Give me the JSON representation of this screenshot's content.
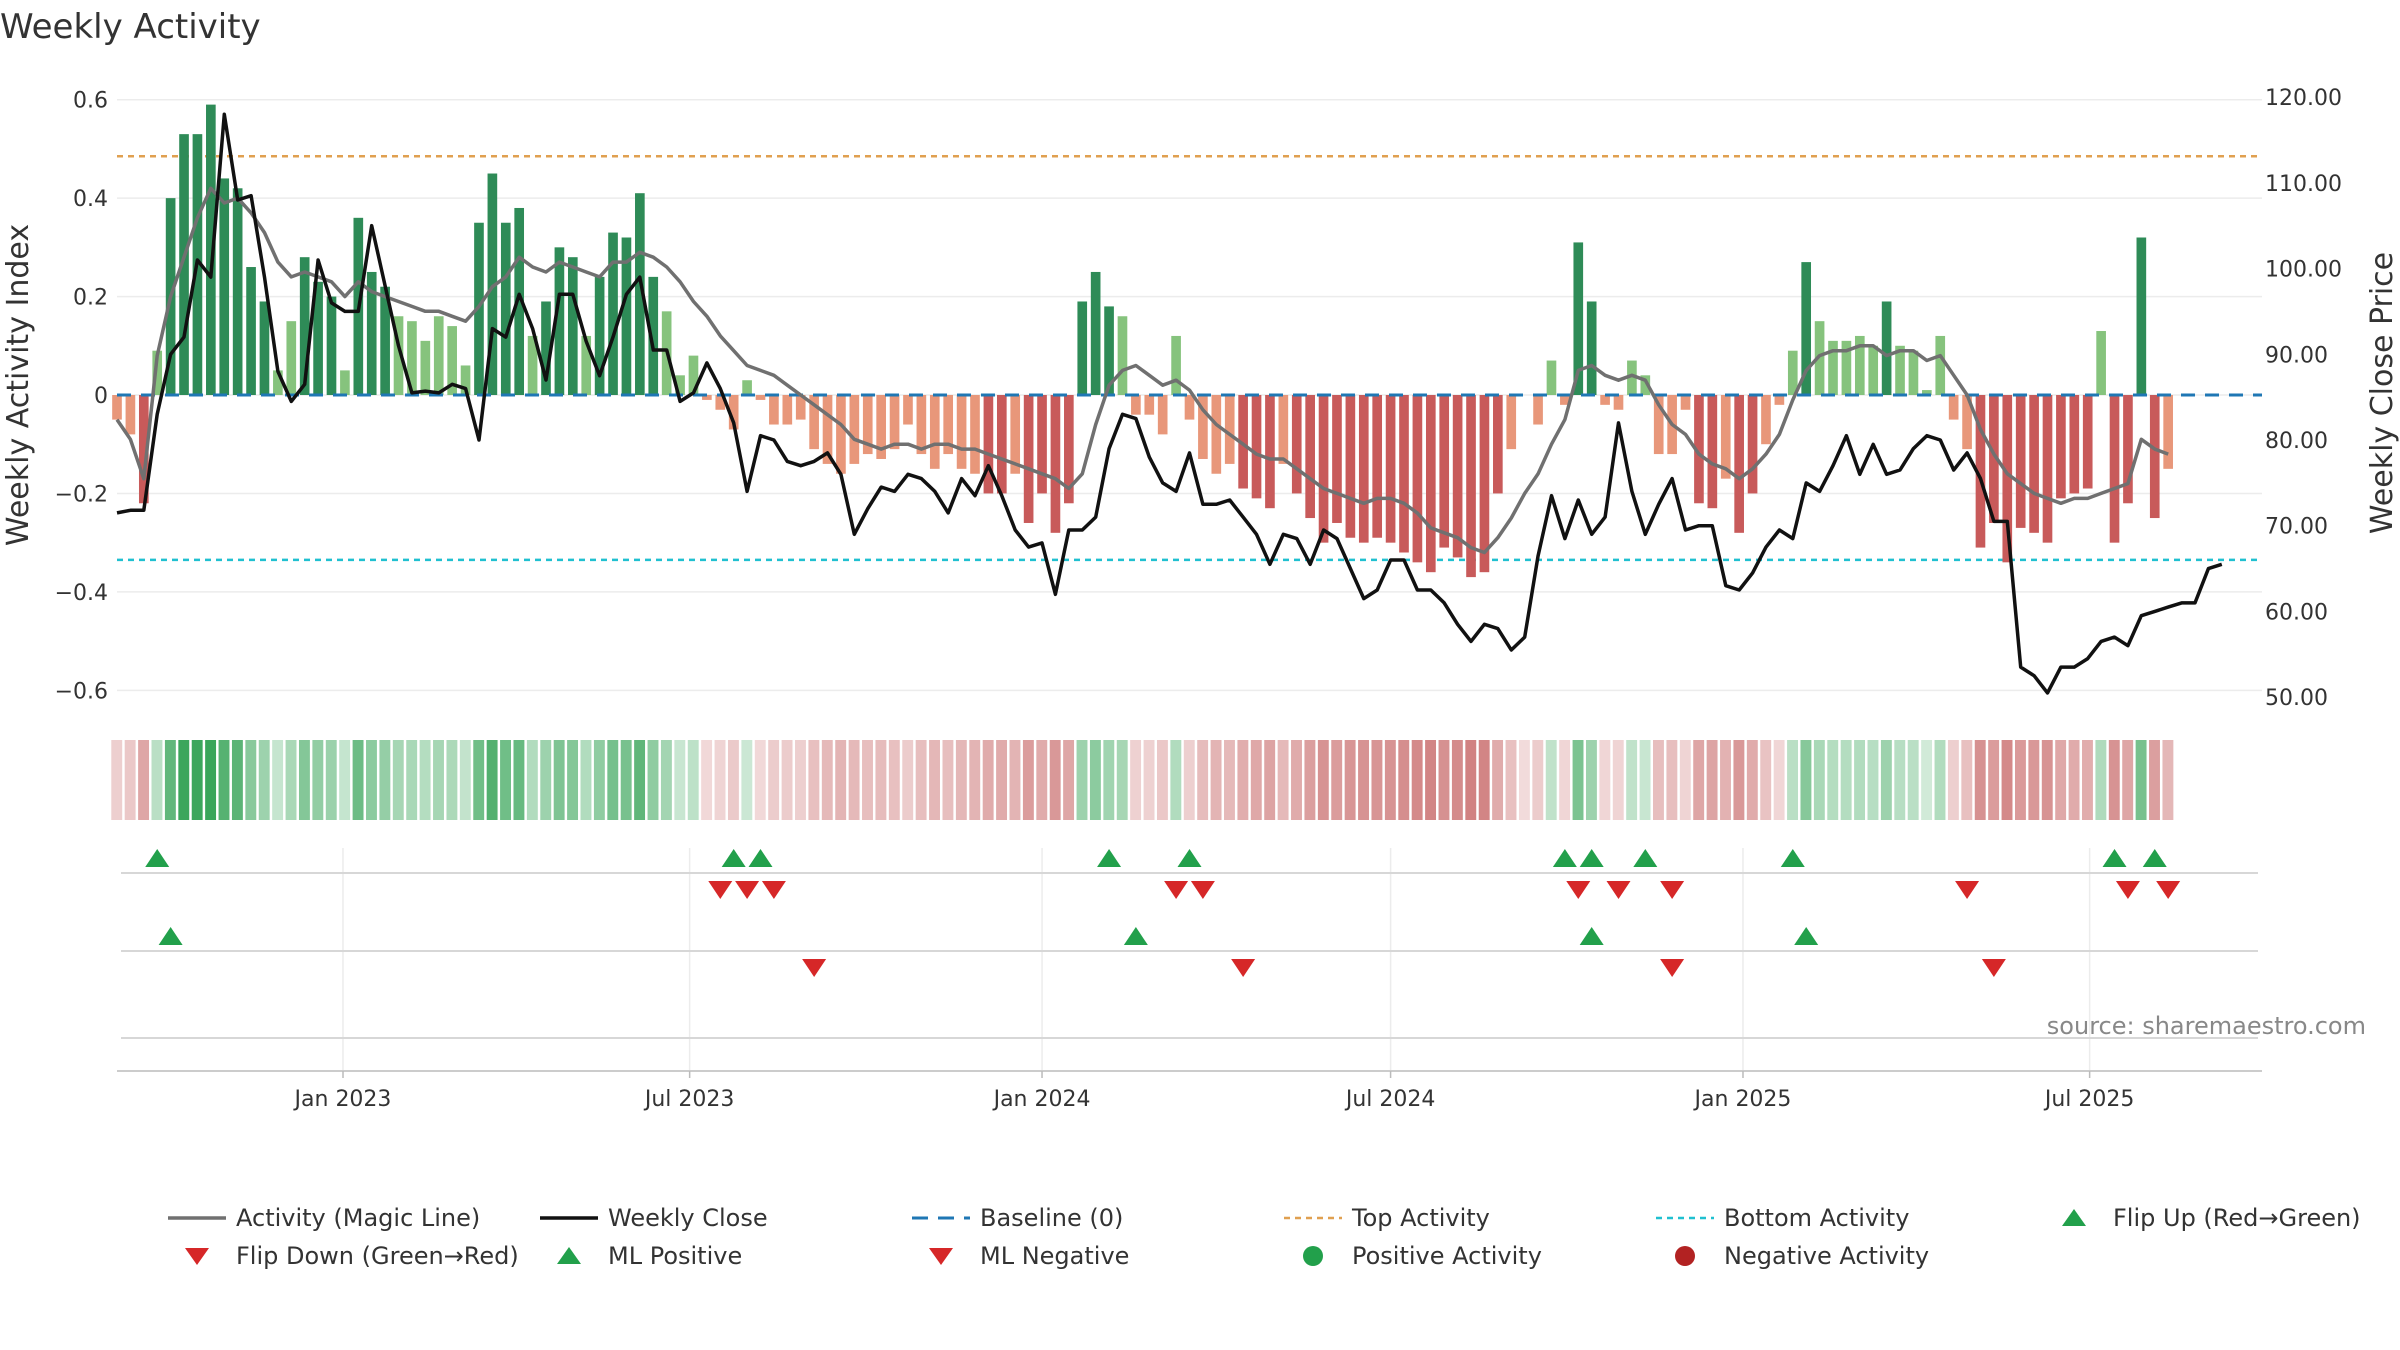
{
  "chart_data": {
    "type": "bar",
    "title": "Weekly Activity",
    "ylabel": "Weekly Activity Index",
    "y2label": "Weekly Close Price",
    "ylim": [
      -0.64,
      0.64
    ],
    "y2lim": [
      48.5,
      122
    ],
    "yticks": [
      -0.6,
      -0.4,
      -0.2,
      0,
      0.2,
      0.4,
      0.6
    ],
    "ytick_labels": [
      "−0.6",
      "−0.4",
      "−0.2",
      "0",
      "0.2",
      "0.4",
      "0.6"
    ],
    "y2ticks": [
      50,
      60,
      70,
      80,
      90,
      100,
      110,
      120
    ],
    "y2tick_labels": [
      "50.00",
      "60.00",
      "70.00",
      "80.00",
      "90.00",
      "100.00",
      "110.00",
      "120.00"
    ],
    "xlim": [
      "2022-09-05",
      "2025-09-29"
    ],
    "xticks": [
      "2023-01-01",
      "2023-07-01",
      "2024-01-01",
      "2024-07-01",
      "2025-01-01",
      "2025-07-01"
    ],
    "xtick_labels": [
      "Jan 2023",
      "Jul 2023",
      "Jan 2024",
      "Jul 2024",
      "Jan 2025",
      "Jul 2025"
    ],
    "start_date": "2022-09-05",
    "week_step_days": 7,
    "top_activity": 0.485,
    "bottom_activity": -0.335,
    "baseline": 0,
    "activity": [
      -0.05,
      -0.08,
      -0.22,
      0.09,
      0.4,
      0.53,
      0.53,
      0.59,
      0.44,
      0.42,
      0.26,
      0.19,
      0.05,
      0.15,
      0.28,
      0.23,
      0.2,
      0.05,
      0.36,
      0.25,
      0.22,
      0.16,
      0.15,
      0.11,
      0.16,
      0.14,
      0.06,
      0.35,
      0.45,
      0.35,
      0.38,
      0.12,
      0.19,
      0.3,
      0.28,
      0.12,
      0.24,
      0.33,
      0.32,
      0.41,
      0.24,
      0.17,
      0.04,
      0.08,
      -0.01,
      -0.03,
      -0.07,
      0.03,
      -0.01,
      -0.06,
      -0.06,
      -0.05,
      -0.11,
      -0.14,
      -0.16,
      -0.14,
      -0.12,
      -0.13,
      -0.11,
      -0.06,
      -0.12,
      -0.15,
      -0.12,
      -0.15,
      -0.16,
      -0.2,
      -0.2,
      -0.16,
      -0.26,
      -0.2,
      -0.28,
      -0.22,
      0.19,
      0.25,
      0.18,
      0.16,
      -0.04,
      -0.04,
      -0.08,
      0.12,
      -0.05,
      -0.13,
      -0.16,
      -0.14,
      -0.19,
      -0.21,
      -0.23,
      -0.14,
      -0.2,
      -0.25,
      -0.3,
      -0.26,
      -0.29,
      -0.3,
      -0.29,
      -0.3,
      -0.32,
      -0.34,
      -0.36,
      -0.31,
      -0.33,
      -0.37,
      -0.36,
      -0.2,
      -0.11,
      0,
      -0.06,
      0.07,
      -0.02,
      0.31,
      0.19,
      -0.02,
      -0.03,
      0.07,
      0.04,
      -0.12,
      -0.12,
      -0.03,
      -0.22,
      -0.23,
      -0.17,
      -0.28,
      -0.2,
      -0.1,
      -0.02,
      0.09,
      0.27,
      0.15,
      0.11,
      0.11,
      0.12,
      0.1,
      0.19,
      0.1,
      0.09,
      0.01,
      0.12,
      -0.05,
      -0.11,
      -0.31,
      -0.26,
      -0.34,
      -0.27,
      -0.28,
      -0.3,
      -0.21,
      -0.2,
      -0.19,
      0.13,
      -0.3,
      -0.22,
      0.32,
      -0.25,
      -0.15
    ],
    "activity_strong_threshold": 0.18,
    "magic_line": [
      -0.05,
      -0.09,
      -0.17,
      0.08,
      0.2,
      0.28,
      0.36,
      0.42,
      0.39,
      0.4,
      0.37,
      0.33,
      0.27,
      0.24,
      0.25,
      0.24,
      0.23,
      0.2,
      0.23,
      0.21,
      0.2,
      0.19,
      0.18,
      0.17,
      0.17,
      0.16,
      0.15,
      0.18,
      0.22,
      0.24,
      0.28,
      0.26,
      0.25,
      0.27,
      0.26,
      0.25,
      0.24,
      0.27,
      0.27,
      0.29,
      0.28,
      0.26,
      0.23,
      0.19,
      0.16,
      0.12,
      0.09,
      0.06,
      0.05,
      0.04,
      0.02,
      0,
      -0.02,
      -0.04,
      -0.06,
      -0.09,
      -0.1,
      -0.11,
      -0.1,
      -0.1,
      -0.11,
      -0.1,
      -0.1,
      -0.11,
      -0.11,
      -0.12,
      -0.13,
      -0.14,
      -0.15,
      -0.16,
      -0.17,
      -0.19,
      -0.16,
      -0.06,
      0.02,
      0.05,
      0.06,
      0.04,
      0.02,
      0.03,
      0.01,
      -0.03,
      -0.06,
      -0.08,
      -0.1,
      -0.12,
      -0.13,
      -0.13,
      -0.15,
      -0.17,
      -0.19,
      -0.2,
      -0.21,
      -0.22,
      -0.21,
      -0.21,
      -0.22,
      -0.24,
      -0.27,
      -0.28,
      -0.29,
      -0.31,
      -0.32,
      -0.29,
      -0.25,
      -0.2,
      -0.16,
      -0.1,
      -0.05,
      0.05,
      0.06,
      0.04,
      0.03,
      0.04,
      0.03,
      -0.02,
      -0.06,
      -0.08,
      -0.12,
      -0.14,
      -0.15,
      -0.17,
      -0.15,
      -0.12,
      -0.08,
      -0.01,
      0.05,
      0.08,
      0.09,
      0.09,
      0.1,
      0.1,
      0.08,
      0.09,
      0.09,
      0.07,
      0.08,
      0.04,
      0,
      -0.07,
      -0.12,
      -0.16,
      -0.18,
      -0.2,
      -0.21,
      -0.22,
      -0.21,
      -0.21,
      -0.2,
      -0.19,
      -0.18,
      -0.09,
      -0.11,
      -0.12
    ],
    "weekly_close": [
      71.5,
      71.8,
      71.8,
      83,
      90,
      92,
      101,
      99,
      118,
      108,
      108.5,
      99,
      88,
      84.5,
      86.5,
      101,
      96,
      95,
      95,
      105,
      98,
      91,
      85.5,
      85.7,
      85.5,
      86.5,
      86,
      80,
      93,
      92,
      97,
      93,
      87,
      97,
      97,
      91.5,
      87.5,
      92,
      97,
      99,
      90.5,
      90.5,
      84.5,
      85.5,
      89,
      86,
      82,
      74,
      80.5,
      80,
      77.5,
      77,
      77.5,
      78.5,
      76,
      69,
      72,
      74.5,
      74,
      76,
      75.5,
      74,
      71.5,
      75.5,
      73.5,
      77,
      73.5,
      69.5,
      67.5,
      68,
      62,
      69.5,
      69.5,
      71,
      79,
      83,
      82.5,
      78,
      75,
      74,
      78.5,
      72.5,
      72.5,
      73,
      71,
      69,
      65.5,
      69,
      68.5,
      65.5,
      69.5,
      68.5,
      65,
      61.5,
      62.5,
      66,
      66,
      62.5,
      62.5,
      61,
      58.5,
      56.5,
      58.5,
      58,
      55.5,
      57,
      66.5,
      73.5,
      68.5,
      73,
      69,
      71,
      82,
      74,
      69,
      72.5,
      75.5,
      69.5,
      70,
      70,
      63,
      62.5,
      64.5,
      67.5,
      69.5,
      68.5,
      75,
      74,
      77,
      80.5,
      76,
      79.5,
      76,
      76.5,
      79,
      80.5,
      80,
      76.5,
      78.5,
      75.5,
      70.5,
      70.5,
      53.5,
      52.5,
      50.5,
      53.5,
      53.5,
      54.5,
      56.5,
      57,
      56,
      59.5,
      60,
      60.5,
      61,
      61,
      65,
      65.5
    ],
    "color_strip_note": "per-week shading derived from activity values",
    "flip_up_weeks": [
      3,
      46,
      48,
      74,
      80,
      108,
      110,
      114,
      125,
      149,
      152
    ],
    "flip_down_weeks": [
      45,
      47,
      49,
      79,
      81,
      109,
      112,
      116,
      138,
      150,
      153
    ],
    "ml_positive_weeks": [
      4,
      76,
      110,
      126
    ],
    "ml_negative_weeks": [
      52,
      84,
      116,
      140
    ],
    "legend": [
      {
        "label": "Activity (Magic Line)",
        "kind": "line-gray"
      },
      {
        "label": "Weekly Close",
        "kind": "line-black"
      },
      {
        "label": "Baseline (0)",
        "kind": "line-dashed-blue"
      },
      {
        "label": "Top Activity",
        "kind": "line-dotted-orange"
      },
      {
        "label": "Bottom Activity",
        "kind": "line-dotted-cyan"
      },
      {
        "label": "Flip Up (Red→Green)",
        "kind": "tri-up"
      },
      {
        "label": "Flip Down (Green→Red)",
        "kind": "tri-down"
      },
      {
        "label": "ML Positive",
        "kind": "tri-up"
      },
      {
        "label": "ML Negative",
        "kind": "tri-down"
      },
      {
        "label": "Positive Activity",
        "kind": "dot-green"
      },
      {
        "label": "Negative Activity",
        "kind": "dot-red"
      }
    ],
    "source": "source: sharemaestro.com",
    "colors": {
      "strong_green": "#2e8b57",
      "light_green": "#86c37d",
      "strong_red": "#c85a5a",
      "light_red": "#e8977a",
      "magic_line": "#707070",
      "close": "#111111",
      "baseline": "#1f77b4",
      "top": "#e0a050",
      "bottom": "#20c0d0",
      "marker_green": "#22a04b",
      "marker_red": "#d62728",
      "dot_red": "#b22222"
    }
  }
}
